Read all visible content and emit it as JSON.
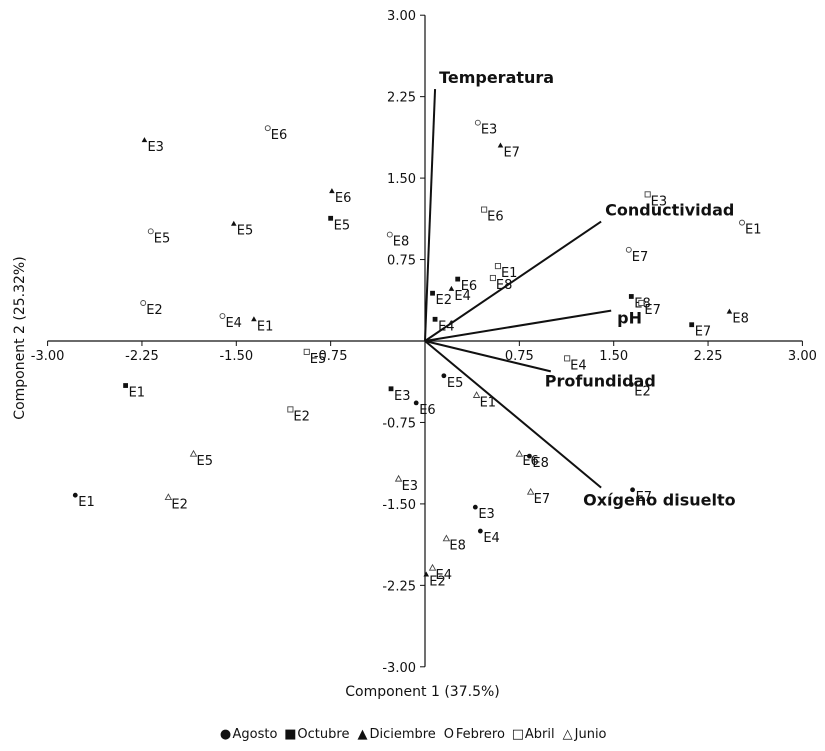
{
  "chart_data": {
    "type": "scatter",
    "title": "",
    "xlabel": "Component 1 (37.5%)",
    "ylabel": "Component 2 (25.32%)",
    "xlim": [
      -3.0,
      3.0
    ],
    "ylim": [
      -3.0,
      3.0
    ],
    "x_ticks": [
      "-3.00",
      "-2.25",
      "-1.50",
      "-0.75",
      "0.75",
      "1.50",
      "2.25",
      "3.00"
    ],
    "y_ticks": [
      "3.00",
      "2.25",
      "1.50",
      "0.75",
      "-0.75",
      "-1.50",
      "-2.25",
      "-3.00"
    ],
    "grid": false,
    "legend_position": "bottom",
    "series": [
      {
        "name": "Agosto",
        "marker": "●",
        "points": [
          {
            "label": "E1",
            "x": -2.78,
            "y": -1.42
          },
          {
            "label": "E2",
            "x": 1.64,
            "y": -0.4
          },
          {
            "label": "E3",
            "x": 0.4,
            "y": -1.53
          },
          {
            "label": "E4",
            "x": 0.44,
            "y": -1.75
          },
          {
            "label": "E5",
            "x": 0.15,
            "y": -0.32
          },
          {
            "label": "E6",
            "x": -0.07,
            "y": -0.57
          },
          {
            "label": "E7",
            "x": 1.65,
            "y": -1.37
          },
          {
            "label": "E8",
            "x": 0.83,
            "y": -1.06
          }
        ]
      },
      {
        "name": "Octubre",
        "marker": "■",
        "points": [
          {
            "label": "E1",
            "x": -2.38,
            "y": -0.41
          },
          {
            "label": "E2",
            "x": 0.06,
            "y": 0.44
          },
          {
            "label": "E3",
            "x": -0.27,
            "y": -0.44
          },
          {
            "label": "E4",
            "x": 0.08,
            "y": 0.2
          },
          {
            "label": "E5",
            "x": -0.75,
            "y": 1.13
          },
          {
            "label": "E6",
            "x": 0.26,
            "y": 0.57
          },
          {
            "label": "E7",
            "x": 2.12,
            "y": 0.15
          },
          {
            "label": "E8",
            "x": 1.64,
            "y": 0.41
          }
        ]
      },
      {
        "name": "Diciembre",
        "marker": "▲",
        "points": [
          {
            "label": "E1",
            "x": -1.36,
            "y": 0.2
          },
          {
            "label": "E2",
            "x": 0.01,
            "y": -2.15
          },
          {
            "label": "E3",
            "x": -2.23,
            "y": 1.85
          },
          {
            "label": "E4",
            "x": 0.21,
            "y": 0.48
          },
          {
            "label": "E5",
            "x": -1.52,
            "y": 1.08
          },
          {
            "label": "E6",
            "x": -0.74,
            "y": 1.38
          },
          {
            "label": "E7",
            "x": 0.6,
            "y": 1.8
          },
          {
            "label": "E8",
            "x": 2.42,
            "y": 0.27
          }
        ]
      },
      {
        "name": "Febrero",
        "marker": "O",
        "points": [
          {
            "label": "E2",
            "x": -2.24,
            "y": 0.35
          },
          {
            "label": "E3",
            "x": 0.42,
            "y": 2.01
          },
          {
            "label": "E4",
            "x": -1.61,
            "y": 0.23
          },
          {
            "label": "E5",
            "x": -2.18,
            "y": 1.01
          },
          {
            "label": "E6",
            "x": -1.25,
            "y": 1.96
          },
          {
            "label": "E7",
            "x": 1.62,
            "y": 0.84
          },
          {
            "label": "E8",
            "x": -0.28,
            "y": 0.98
          },
          {
            "label": "E1",
            "x": 2.52,
            "y": 1.09
          }
        ]
      },
      {
        "name": "Abril",
        "marker": "□",
        "points": [
          {
            "label": "E1",
            "x": 0.58,
            "y": 0.69
          },
          {
            "label": "E2",
            "x": -1.07,
            "y": -0.63
          },
          {
            "label": "E3",
            "x": 1.77,
            "y": 1.35
          },
          {
            "label": "E4",
            "x": 1.13,
            "y": -0.16
          },
          {
            "label": "E5",
            "x": -0.94,
            "y": -0.1
          },
          {
            "label": "E6",
            "x": 0.47,
            "y": 1.21
          },
          {
            "label": "E7",
            "x": 1.72,
            "y": 0.35
          },
          {
            "label": "E8",
            "x": 0.54,
            "y": 0.58
          }
        ]
      },
      {
        "name": "Junio",
        "marker": "△",
        "points": [
          {
            "label": "E1",
            "x": 0.41,
            "y": -0.5
          },
          {
            "label": "E3",
            "x": -0.21,
            "y": -1.27
          },
          {
            "label": "E4",
            "x": 0.06,
            "y": -2.09
          },
          {
            "label": "E5",
            "x": -1.84,
            "y": -1.04
          },
          {
            "label": "E6",
            "x": 0.75,
            "y": -1.04
          },
          {
            "label": "E7",
            "x": 0.84,
            "y": -1.39
          },
          {
            "label": "E8",
            "x": 0.17,
            "y": -1.82
          },
          {
            "label": "E2",
            "x": -2.04,
            "y": -1.44
          }
        ]
      }
    ],
    "vectors": [
      {
        "name": "Temperatura",
        "x": 0.08,
        "y": 2.32
      },
      {
        "name": "Conductividad",
        "x": 1.4,
        "y": 1.1
      },
      {
        "name": "pH",
        "x": 1.48,
        "y": 0.28
      },
      {
        "name": "Profundidad",
        "x": 1.0,
        "y": -0.28
      },
      {
        "name": "Oxígeno disuelto",
        "x": 1.4,
        "y": -1.35
      }
    ]
  }
}
